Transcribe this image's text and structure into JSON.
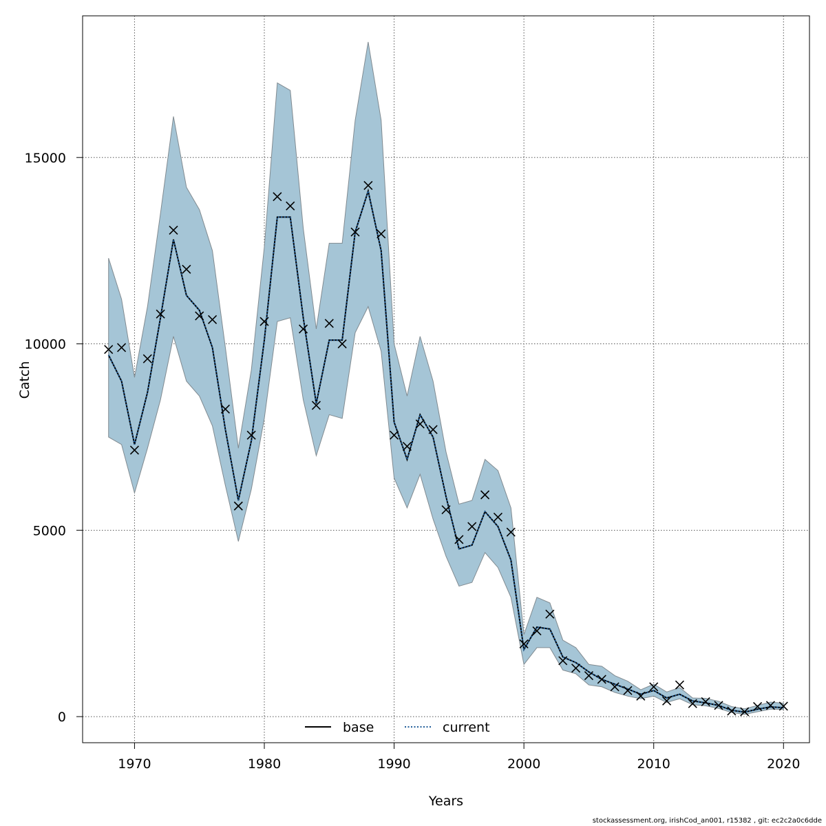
{
  "chart_data": {
    "type": "line",
    "xlabel": "Years",
    "ylabel": "Catch",
    "xlim": [
      1966,
      2022
    ],
    "ylim": [
      -700,
      18800
    ],
    "x_ticks": [
      1970,
      1980,
      1990,
      2000,
      2010,
      2020
    ],
    "y_ticks": [
      0,
      5000,
      10000,
      15000
    ],
    "x_tick_labels": [
      "1970",
      "1980",
      "1990",
      "2000",
      "2010",
      "2020"
    ],
    "y_tick_labels": [
      "0",
      "5000",
      "10000",
      "15000"
    ],
    "grid": true,
    "legend_position": "bottom-center",
    "legend": [
      {
        "label": "base",
        "style": "solid",
        "color": "#000000"
      },
      {
        "label": "current",
        "style": "dotted",
        "color": "#1f5c99"
      }
    ],
    "band_color": "#a5c5d6",
    "band_edge_color": "#808a90",
    "years": [
      1968,
      1969,
      1970,
      1971,
      1972,
      1973,
      1974,
      1975,
      1976,
      1977,
      1978,
      1979,
      1980,
      1981,
      1982,
      1983,
      1984,
      1985,
      1986,
      1987,
      1988,
      1989,
      1990,
      1991,
      1992,
      1993,
      1994,
      1995,
      1996,
      1997,
      1998,
      1999,
      2000,
      2001,
      2002,
      2003,
      2004,
      2005,
      2006,
      2007,
      2008,
      2009,
      2010,
      2011,
      2012,
      2013,
      2014,
      2015,
      2016,
      2017,
      2018,
      2019,
      2020
    ],
    "series": [
      {
        "name": "current",
        "estimate": [
          9700,
          9000,
          7300,
          8700,
          10700,
          12800,
          11300,
          10900,
          9900,
          7700,
          5800,
          7400,
          10100,
          13400,
          13400,
          10700,
          8400,
          10100,
          10100,
          13000,
          14100,
          12500,
          7900,
          6900,
          8100,
          7500,
          5900,
          4500,
          4600,
          5500,
          5100,
          4200,
          1800,
          2400,
          2350,
          1600,
          1450,
          1200,
          1000,
          870,
          740,
          600,
          700,
          500,
          600,
          420,
          370,
          300,
          170,
          120,
          200,
          260,
          240
        ],
        "lower": [
          7500,
          7300,
          6000,
          7200,
          8500,
          10200,
          9000,
          8600,
          7800,
          6200,
          4700,
          6100,
          8000,
          10600,
          10700,
          8500,
          7000,
          8100,
          8000,
          10300,
          11000,
          9800,
          6400,
          5600,
          6500,
          5300,
          4300,
          3500,
          3600,
          4400,
          4000,
          3200,
          1400,
          1850,
          1850,
          1250,
          1150,
          850,
          800,
          650,
          550,
          480,
          550,
          380,
          480,
          320,
          290,
          220,
          110,
          60,
          130,
          200,
          190
        ],
        "upper": [
          12300,
          11200,
          9100,
          11000,
          13500,
          16100,
          14200,
          13600,
          12500,
          9900,
          7200,
          9300,
          12600,
          17000,
          16800,
          13100,
          10400,
          12700,
          12700,
          16000,
          18100,
          16000,
          10000,
          8600,
          10200,
          9000,
          7100,
          5700,
          5800,
          6900,
          6600,
          5600,
          2200,
          3200,
          3050,
          2050,
          1850,
          1400,
          1350,
          1100,
          950,
          720,
          870,
          660,
          780,
          500,
          490,
          410,
          270,
          210,
          300,
          390,
          360
        ]
      },
      {
        "name": "observed",
        "values": [
          9850,
          9900,
          7150,
          9600,
          10800,
          13050,
          12000,
          10750,
          10650,
          8250,
          5650,
          7550,
          10600,
          13950,
          13700,
          10400,
          8350,
          10550,
          10000,
          13000,
          14250,
          12950,
          7550,
          7250,
          7850,
          7700,
          5550,
          4750,
          5100,
          5950,
          5350,
          4950,
          1950,
          2300,
          2750,
          1500,
          1300,
          1100,
          1000,
          800,
          700,
          550,
          800,
          420,
          850,
          350,
          400,
          300,
          150,
          130,
          270,
          300,
          280
        ]
      }
    ]
  },
  "footer": "stockassessment.org, irishCod_an001, r15382 , git: ec2c2a0c6dde"
}
